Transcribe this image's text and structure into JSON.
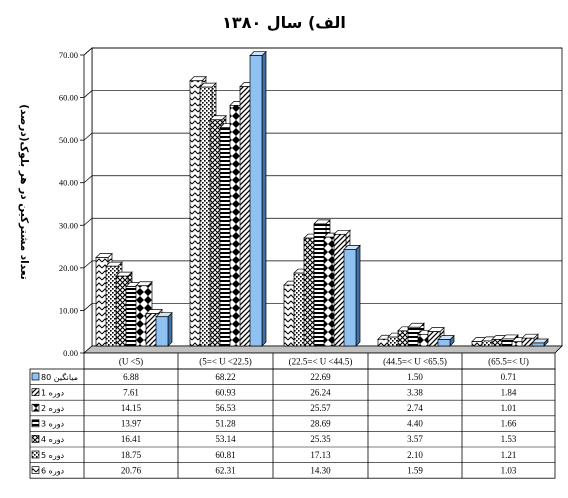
{
  "chart_data": {
    "type": "bar",
    "title": "الف) سال ۱۳۸۰",
    "ylabel": "تعداد مشترکین در هر بلوک(درصد)",
    "ylim": [
      0,
      70
    ],
    "yticks": [
      "0.00",
      "10.00",
      "20.00",
      "30.00",
      "40.00",
      "50.00",
      "60.00",
      "70.00"
    ],
    "grid": true,
    "categories": [
      "(U <5)",
      "(5=< U <22.5)",
      "(22.5=< U <44.5)",
      "(44.5=< U <65.5)",
      "(65.5=< U)"
    ],
    "series": [
      {
        "name": "دوره 6",
        "values": [
          "20.76",
          "62.31",
          "14.30",
          "1.59",
          "1.03"
        ],
        "color": "#ffffff",
        "pattern": "zigzag"
      },
      {
        "name": "دوره 5",
        "values": [
          "18.75",
          "60.81",
          "17.13",
          "2.10",
          "1.21"
        ],
        "color": "#ffffff",
        "pattern": "dots"
      },
      {
        "name": "دوره 4",
        "values": [
          "16.41",
          "53.14",
          "25.35",
          "3.57",
          "1.53"
        ],
        "color": "#ffffff",
        "pattern": "cross"
      },
      {
        "name": "دوره 3",
        "values": [
          "13.97",
          "51.28",
          "28.69",
          "4.40",
          "1.66"
        ],
        "color": "#ffffff",
        "pattern": "hstripe"
      },
      {
        "name": "دوره 2",
        "values": [
          "14.15",
          "56.53",
          "25.57",
          "2.74",
          "1.01"
        ],
        "color": "#ffffff",
        "pattern": "diamond"
      },
      {
        "name": "دوره 1",
        "values": [
          "7.61",
          "60.93",
          "26.24",
          "3.38",
          "1.84"
        ],
        "color": "#ffffff",
        "pattern": "diag"
      },
      {
        "name": "میانگین 80",
        "values": [
          "6.88",
          "68.22",
          "22.69",
          "1.50",
          "0.71"
        ],
        "color": "#8fc1f2",
        "pattern": "solid"
      }
    ],
    "table_row_order": [
      "میانگین 80",
      "دوره 1",
      "دوره 2",
      "دوره 3",
      "دوره 4",
      "دوره 5",
      "دوره 6"
    ]
  }
}
